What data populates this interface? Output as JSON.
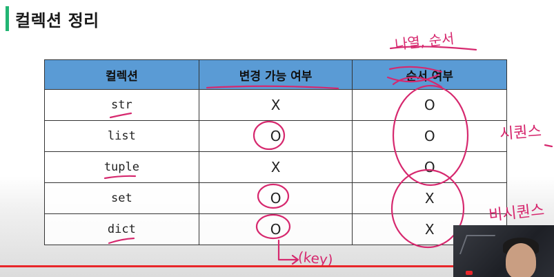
{
  "slide": {
    "title": "컬렉션 정리",
    "accent_color": "#22b573"
  },
  "table": {
    "headers": [
      "컬렉션",
      "변경 가능 여부",
      "순서 여부"
    ],
    "rows": [
      {
        "name": "str",
        "mutable": "X",
        "ordered": "O"
      },
      {
        "name": "list",
        "mutable": "O",
        "ordered": "O"
      },
      {
        "name": "tuple",
        "mutable": "X",
        "ordered": "O"
      },
      {
        "name": "set",
        "mutable": "O",
        "ordered": "X"
      },
      {
        "name": "dict",
        "mutable": "O",
        "ordered": "X"
      }
    ],
    "header_color": "#5a9bd5"
  },
  "annotations": {
    "note_top": "나열, 순서",
    "note_sequence": "시퀀스",
    "note_non_sequence": "비시퀀스",
    "note_key": "(key)",
    "ink_color": "#d6286e"
  }
}
